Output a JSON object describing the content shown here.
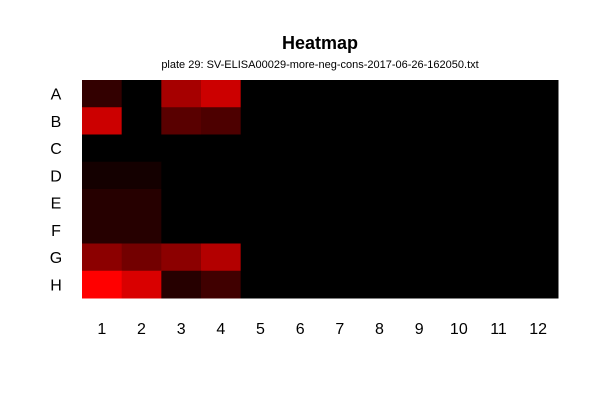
{
  "chart_data": {
    "type": "heatmap",
    "title": "Heatmap",
    "subtitle": "plate 29: SV-ELISA00029-more-neg-cons-2017-06-26-162050.txt",
    "xlabel": "",
    "ylabel": "",
    "rows": [
      "A",
      "B",
      "C",
      "D",
      "E",
      "F",
      "G",
      "H"
    ],
    "columns": [
      "1",
      "2",
      "3",
      "4",
      "5",
      "6",
      "7",
      "8",
      "9",
      "10",
      "11",
      "12"
    ],
    "color_scale": {
      "low": "#000000",
      "high": "#ff0000"
    },
    "values": [
      [
        0.2,
        0.0,
        0.65,
        0.8,
        0,
        0,
        0,
        0,
        0,
        0,
        0,
        0
      ],
      [
        0.8,
        0.0,
        0.35,
        0.3,
        0,
        0,
        0,
        0,
        0,
        0,
        0,
        0
      ],
      [
        0.0,
        0.0,
        0.0,
        0.0,
        0,
        0,
        0,
        0,
        0,
        0,
        0,
        0
      ],
      [
        0.08,
        0.08,
        0.0,
        0.0,
        0,
        0,
        0,
        0,
        0,
        0,
        0,
        0
      ],
      [
        0.15,
        0.15,
        0.0,
        0.0,
        0,
        0,
        0,
        0,
        0,
        0,
        0,
        0
      ],
      [
        0.15,
        0.15,
        0.0,
        0.0,
        0,
        0,
        0,
        0,
        0,
        0,
        0,
        0
      ],
      [
        0.55,
        0.45,
        0.55,
        0.7,
        0,
        0,
        0,
        0,
        0,
        0,
        0,
        0
      ],
      [
        1.0,
        0.85,
        0.15,
        0.25,
        0,
        0,
        0,
        0,
        0,
        0,
        0,
        0
      ]
    ],
    "grid": false,
    "legend": "none"
  }
}
